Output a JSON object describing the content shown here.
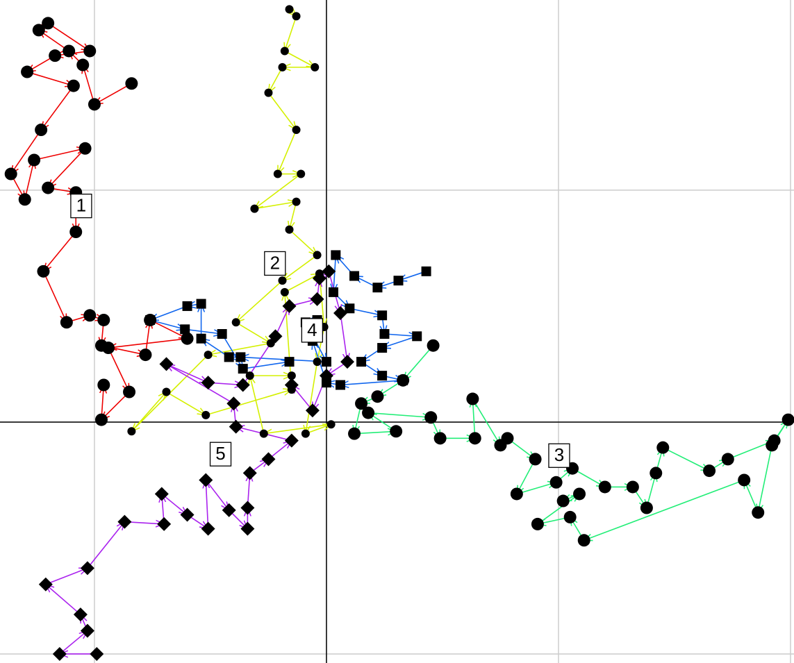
{
  "chart_data": {
    "type": "trajectory",
    "xlim": [
      -1.407,
      2.015
    ],
    "ylim": [
      -1.039,
      1.82
    ],
    "xticks": [
      -1,
      0,
      1,
      2
    ],
    "yticks": [
      -1,
      0,
      1
    ],
    "grid": true,
    "series": [
      {
        "name": "1",
        "color": "#ee0000",
        "marker": "circle",
        "x": [
          -0.84,
          -1.0,
          -1.05,
          -1.11,
          -1.24,
          -1.2,
          -1.02,
          -1.17,
          -1.29,
          -1.09,
          -1.23,
          -1.36,
          -1.3,
          -1.26,
          -1.04,
          -1.2,
          -1.08,
          -1.08,
          -1.22,
          -1.12,
          -1.02,
          -0.96,
          -0.97,
          -0.78,
          -0.76,
          -0.6,
          -0.94,
          -0.85,
          -0.97,
          -0.96
        ],
        "y": [
          1.46,
          1.37,
          1.54,
          1.6,
          1.69,
          1.72,
          1.6,
          1.58,
          1.51,
          1.45,
          1.26,
          1.07,
          0.96,
          1.13,
          1.18,
          1.01,
          0.99,
          0.82,
          0.65,
          0.43,
          0.46,
          0.44,
          0.33,
          0.29,
          0.44,
          0.36,
          0.32,
          0.13,
          0.01,
          0.16
        ]
      },
      {
        "name": "2",
        "color": "#d4f000",
        "marker": "small-circle",
        "x": [
          -0.16,
          -0.13,
          -0.18,
          -0.05,
          -0.19,
          -0.25,
          -0.13,
          -0.21,
          -0.11,
          -0.31,
          -0.13,
          -0.16,
          -0.04,
          -0.19,
          -0.39,
          -0.24,
          -0.51,
          -0.84,
          -0.69,
          -0.52,
          -0.15,
          -0.18,
          -0.03,
          -0.01,
          -0.04,
          -0.09,
          0.02,
          -0.27,
          -0.33,
          -0.15
        ],
        "y": [
          1.78,
          1.75,
          1.6,
          1.53,
          1.53,
          1.42,
          1.26,
          1.07,
          1.07,
          0.92,
          0.95,
          0.83,
          0.72,
          0.61,
          0.43,
          0.34,
          0.29,
          -0.04,
          0.13,
          0.03,
          0.14,
          0.56,
          0.64,
          0.41,
          0.26,
          -0.05,
          -0.01,
          -0.05,
          0.2,
          0.2
        ]
      },
      {
        "name": "3",
        "color": "#22ee77",
        "marker": "circle",
        "x": [
          0.46,
          0.33,
          0.22,
          0.15,
          0.12,
          0.3,
          0.18,
          0.45,
          0.49,
          0.64,
          0.63,
          0.75,
          0.78,
          0.9,
          0.82,
          0.99,
          1.06,
          1.2,
          1.32,
          1.38,
          1.42,
          1.45,
          1.65,
          1.73,
          1.93,
          1.99,
          1.92,
          1.86,
          1.8,
          1.11,
          1.05,
          0.91,
          1.09,
          1.02
        ],
        "y": [
          0.33,
          0.18,
          0.11,
          0.08,
          -0.05,
          -0.04,
          0.04,
          0.02,
          -0.07,
          -0.07,
          0.1,
          -0.1,
          -0.07,
          -0.16,
          -0.31,
          -0.26,
          -0.2,
          -0.28,
          -0.28,
          -0.37,
          -0.22,
          -0.11,
          -0.21,
          -0.16,
          -0.08,
          0.01,
          -0.1,
          -0.39,
          -0.25,
          -0.51,
          -0.41,
          -0.44,
          -0.31,
          -0.34
        ]
      },
      {
        "name": "4",
        "color": "#1166ee",
        "marker": "square",
        "x": [
          0.43,
          0.31,
          0.22,
          0.12,
          0.04,
          0.03,
          0.1,
          0.24,
          0.25,
          0.39,
          0.24,
          0.15,
          0.24,
          0.33,
          0.06,
          0,
          -0.06,
          -0.04,
          -0.09,
          0,
          -0.37,
          -0.42,
          -0.54,
          -0.54,
          -0.6,
          -0.76,
          -0.61,
          -0.45,
          -0.36,
          -0.16
        ],
        "y": [
          0.65,
          0.61,
          0.58,
          0.63,
          0.72,
          0.56,
          0.49,
          0.46,
          0.38,
          0.37,
          0.32,
          0.26,
          0.2,
          0.18,
          0.16,
          0.17,
          0.35,
          0.44,
          0.43,
          0.26,
          0.28,
          0.28,
          0.36,
          0.51,
          0.5,
          0.44,
          0.4,
          0.38,
          0.23,
          0.26
        ]
      },
      {
        "name": "5",
        "color": "#aa22ee",
        "marker": "diamond",
        "x": [
          -0.99,
          -1.15,
          -1.03,
          -1.06,
          -1.21,
          -1.03,
          -0.87,
          -0.7,
          -0.71,
          -0.6,
          -0.51,
          -0.52,
          -0.42,
          -0.34,
          -0.34,
          -0.33,
          -0.25,
          -0.15,
          -0.39,
          -0.4,
          -0.69,
          -0.51,
          -0.36,
          -0.22,
          -0.16,
          -0.04,
          -0.03,
          0.01,
          0.06,
          0.09,
          0,
          -0.06,
          -0.15
        ],
        "y": [
          -1.0,
          -1.0,
          -0.9,
          -0.83,
          -0.7,
          -0.63,
          -0.43,
          -0.44,
          -0.31,
          -0.4,
          -0.46,
          -0.25,
          -0.38,
          -0.46,
          -0.37,
          -0.22,
          -0.16,
          -0.08,
          -0.02,
          0.08,
          0.25,
          0.17,
          0.16,
          0.37,
          0.5,
          0.53,
          0.62,
          0.65,
          0.47,
          0.26,
          0.2,
          0.05,
          0.16
        ]
      }
    ]
  }
}
